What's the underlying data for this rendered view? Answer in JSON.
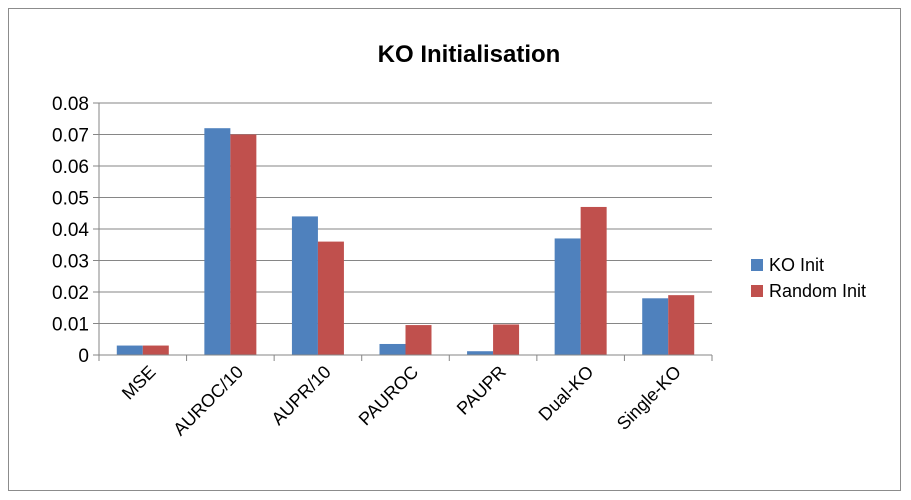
{
  "chart_data": {
    "type": "bar",
    "title": "KO Initialisation",
    "categories": [
      "MSE",
      "AUROC/10",
      "AUPR/10",
      "PAUROC",
      "PAUPR",
      "Dual-KO",
      "Single-KO"
    ],
    "series": [
      {
        "name": "KO Init",
        "color": "#4f81bd",
        "values": [
          0.003,
          0.072,
          0.044,
          0.0035,
          0.0012,
          0.037,
          0.018
        ]
      },
      {
        "name": "Random Init",
        "color": "#c0504d",
        "values": [
          0.003,
          0.07,
          0.036,
          0.0095,
          0.0097,
          0.047,
          0.019
        ]
      }
    ],
    "ylim": [
      0,
      0.08
    ],
    "yticks": [
      "0",
      "0.01",
      "0.02",
      "0.03",
      "0.04",
      "0.05",
      "0.06",
      "0.07",
      "0.08"
    ],
    "grid": true,
    "legend_position": "right"
  }
}
